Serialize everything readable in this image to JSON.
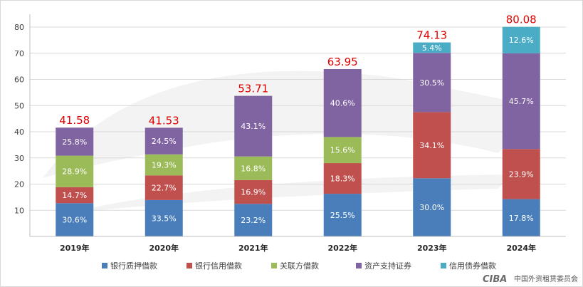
{
  "chart_data": {
    "type": "bar",
    "stacked": true,
    "categories": [
      "2019年",
      "2020年",
      "2021年",
      "2022年",
      "2023年",
      "2024年"
    ],
    "totals": [
      "41.58",
      "41.53",
      "53.71",
      "63.95",
      "74.13",
      "80.08"
    ],
    "ylim": [
      0,
      80
    ],
    "yticks": [
      "10",
      "20",
      "30",
      "40",
      "50",
      "60",
      "70",
      "80"
    ],
    "grid": true,
    "legend_position": "bottom",
    "series": [
      {
        "name": "银行质押借款",
        "color": "#4a7ebb",
        "shares": [
          "30.6%",
          "33.5%",
          "23.2%",
          "25.5%",
          "30.0%",
          "17.8%"
        ]
      },
      {
        "name": "银行信用借款",
        "color": "#c0504d",
        "shares": [
          "14.7%",
          "22.7%",
          "16.9%",
          "18.3%",
          "34.1%",
          "23.9%"
        ]
      },
      {
        "name": "关联方借款",
        "color": "#9bbb59",
        "shares": [
          "28.9%",
          "19.3%",
          "16.8%",
          "15.6%",
          "",
          ""
        ]
      },
      {
        "name": "资产支持证券",
        "color": "#8064a2",
        "shares": [
          "25.8%",
          "24.5%",
          "43.1%",
          "40.6%",
          "30.5%",
          "45.7%"
        ]
      },
      {
        "name": "信用债券借款",
        "color": "#4bacc6",
        "shares": [
          "",
          "",
          "",
          "",
          "5.4%",
          "12.6%"
        ]
      }
    ]
  },
  "footer": {
    "logo_text": "CIBA",
    "org_name": "中国外资租赁委员会"
  }
}
